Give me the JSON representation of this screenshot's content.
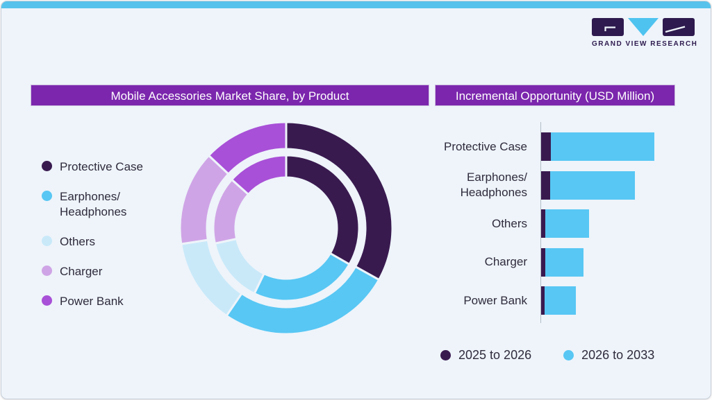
{
  "window": {
    "background": "#eef4fa",
    "topbar_color": "#57c3ec",
    "border_color": "#c8cfd8"
  },
  "logo": {
    "caption": "GRAND VIEW RESEARCH",
    "dark_color": "#2e1a4e",
    "accent_color": "#4ec3f0"
  },
  "left_panel": {
    "title": "Mobile Accessories Market Share, by Product"
  },
  "right_panel": {
    "title": "Incremental Opportunity (USD Million)"
  },
  "title_bar": {
    "background": "#7b26ad",
    "text_color": "#ffffff"
  },
  "text_color": "#2f2b3c",
  "chart_data": [
    {
      "type": "pie",
      "variant": "double-ring-donut",
      "title": "Mobile Accessories Market Share, by Product",
      "categories": [
        "Protective Case",
        "Earphones/\nHeadphones",
        "Others",
        "Charger",
        "Power Bank"
      ],
      "colors": [
        "#391a4f",
        "#58c7f4",
        "#c9e9f9",
        "#cfa4e6",
        "#a850d7"
      ],
      "rings": [
        {
          "name": "outer",
          "share_pct": [
            33.1,
            26.4,
            13.1,
            14.4,
            13.0
          ]
        },
        {
          "name": "inner",
          "share_pct": [
            33.3,
            23.9,
            14.4,
            15.0,
            13.4
          ]
        }
      ],
      "start_angle_deg": 0,
      "direction": "clockwise",
      "legend_position": "left"
    },
    {
      "type": "bar",
      "orientation": "horizontal",
      "stacked": true,
      "title": "Incremental Opportunity (USD Million)",
      "categories": [
        "Protective Case",
        "Earphones/\nHeadphones",
        "Others",
        "Charger",
        "Power Bank"
      ],
      "series": [
        {
          "name": "2025 to 2026",
          "color": "#391a4f",
          "values": [
            14,
            13,
            6,
            5.5,
            4.5
          ]
        },
        {
          "name": "2026 to 2033",
          "color": "#58c7f4",
          "values": [
            149,
            122,
            63,
            55.5,
            45.5
          ]
        }
      ],
      "value_axis": {
        "tick_labels_shown": false,
        "units": "relative length (no axis labels in figure)"
      },
      "legend_position": "bottom"
    }
  ]
}
